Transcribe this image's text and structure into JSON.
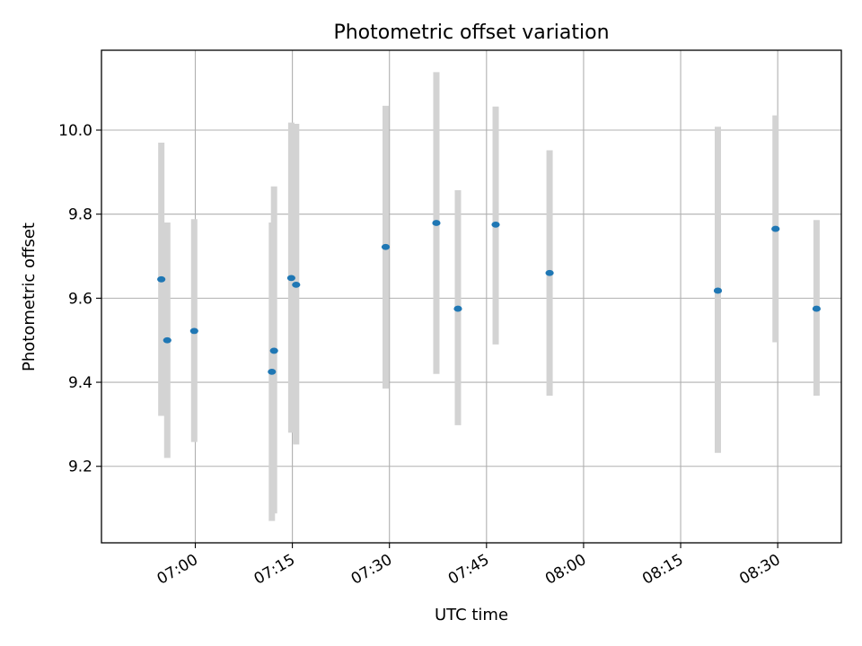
{
  "chart_data": {
    "type": "scatter",
    "title": "Photometric offset variation",
    "xlabel": "UTC time",
    "ylabel": "Photometric offset",
    "x_tick_labels": [
      "07:00",
      "07:15",
      "07:30",
      "07:45",
      "08:00",
      "08:15",
      "08:30"
    ],
    "x_ticks": [
      "07:00",
      "07:15",
      "07:30",
      "07:45",
      "08:00",
      "08:15",
      "08:30"
    ],
    "y_tick_labels": [
      "9.2",
      "9.4",
      "9.6",
      "9.8",
      "10.0"
    ],
    "y_ticks": [
      9.2,
      9.4,
      9.6,
      9.8,
      10.0
    ],
    "xlim": [
      "06:45:30",
      "08:39:50"
    ],
    "ylim": [
      9.018,
      10.19
    ],
    "grid": true,
    "colors": {
      "point": "#1f77b4",
      "errorbar": "#d3d3d3",
      "grid": "#b0b0b0"
    },
    "points": [
      {
        "x": "06:54:45",
        "y": 9.645,
        "lo": 9.32,
        "hi": 9.97
      },
      {
        "x": "06:55:40",
        "y": 9.5,
        "lo": 9.22,
        "hi": 9.78
      },
      {
        "x": "06:59:50",
        "y": 9.522,
        "lo": 9.258,
        "hi": 9.788
      },
      {
        "x": "07:11:50",
        "y": 9.425,
        "lo": 9.07,
        "hi": 9.78
      },
      {
        "x": "07:12:10",
        "y": 9.475,
        "lo": 9.088,
        "hi": 9.866
      },
      {
        "x": "07:14:50",
        "y": 9.648,
        "lo": 9.28,
        "hi": 10.018
      },
      {
        "x": "07:15:35",
        "y": 9.632,
        "lo": 9.252,
        "hi": 10.015
      },
      {
        "x": "07:29:25",
        "y": 9.722,
        "lo": 9.385,
        "hi": 10.058
      },
      {
        "x": "07:37:15",
        "y": 9.779,
        "lo": 9.42,
        "hi": 10.138
      },
      {
        "x": "07:40:35",
        "y": 9.575,
        "lo": 9.298,
        "hi": 9.857
      },
      {
        "x": "07:46:25",
        "y": 9.775,
        "lo": 9.49,
        "hi": 10.056
      },
      {
        "x": "07:54:45",
        "y": 9.66,
        "lo": 9.368,
        "hi": 9.952
      },
      {
        "x": "08:20:45",
        "y": 9.618,
        "lo": 9.232,
        "hi": 10.008
      },
      {
        "x": "08:29:40",
        "y": 9.765,
        "lo": 9.495,
        "hi": 10.035
      },
      {
        "x": "08:36:00",
        "y": 9.575,
        "lo": 9.368,
        "hi": 9.786
      }
    ]
  }
}
